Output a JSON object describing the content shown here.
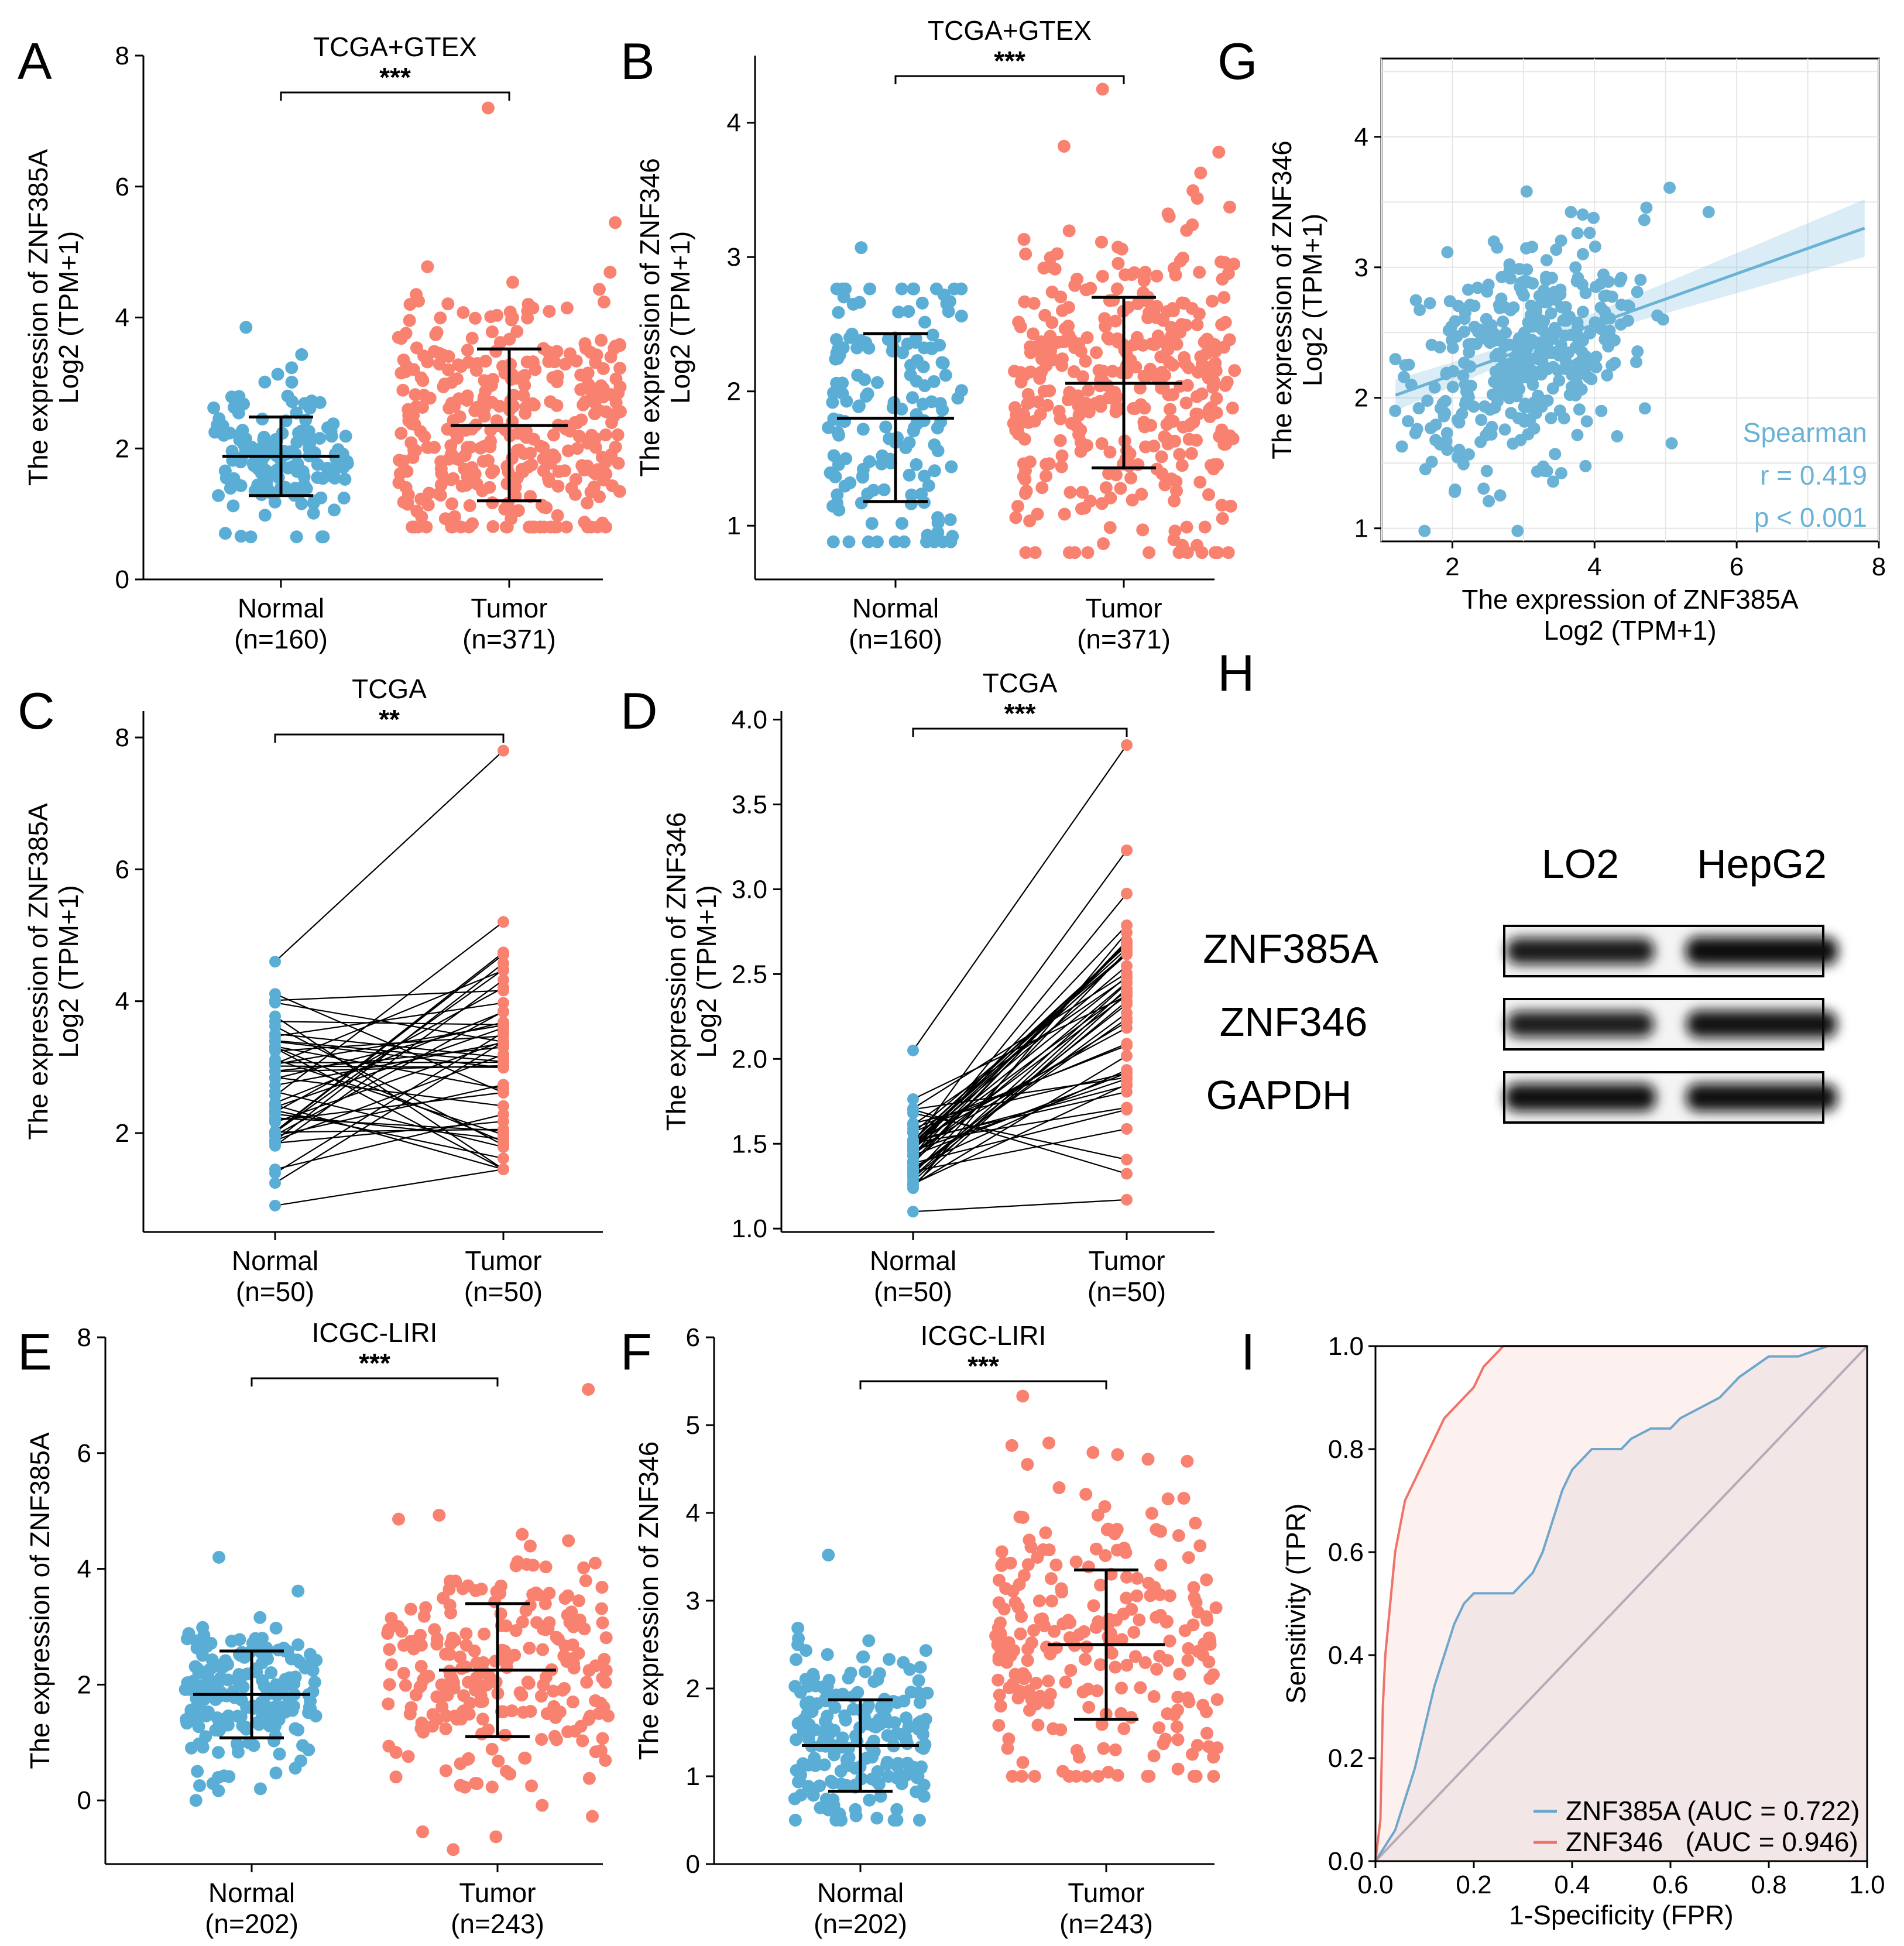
{
  "colors": {
    "normal": "#5aaed6",
    "tumor": "#f98170",
    "spearman": "#6ab3d6",
    "roc_a": "#6fa6cc",
    "roc_b": "#f07369",
    "diag": "#bba8b8"
  },
  "chart_data": [
    {
      "id": "A",
      "type": "scatter",
      "label": "A",
      "title": "TCGA+GTEX",
      "significance": "***",
      "ylabel_lines": [
        "The expression of ZNF385A",
        "Log2 (TPM+1)"
      ],
      "ylim": [
        0,
        8
      ],
      "yticks": [
        "0",
        "2",
        "4",
        "6",
        "8"
      ],
      "categories": [
        {
          "name": "Normal",
          "n": "(n=160)"
        },
        {
          "name": "Tumor",
          "n": "(n=371)"
        }
      ],
      "series": [
        {
          "name": "Normal",
          "mean": 1.88,
          "sd_low": 1.28,
          "sd_high": 2.48,
          "min": 0.65,
          "max": 3.85,
          "count": 160
        },
        {
          "name": "Tumor",
          "mean": 2.35,
          "sd_low": 1.2,
          "sd_high": 3.52,
          "min": 0.8,
          "max": 7.2,
          "count": 371
        }
      ]
    },
    {
      "id": "B",
      "type": "scatter",
      "label": "B",
      "title": "TCGA+GTEX",
      "significance": "***",
      "ylabel_lines": [
        "The expression of ZNF346",
        "Log2 (TPM+1)"
      ],
      "ylim": [
        0.6,
        4.5
      ],
      "yticks": [
        "1",
        "2",
        "3",
        "4"
      ],
      "categories": [
        {
          "name": "Normal",
          "n": "(n=160)"
        },
        {
          "name": "Tumor",
          "n": "(n=371)"
        }
      ],
      "series": [
        {
          "name": "Normal",
          "mean": 1.8,
          "sd_low": 1.18,
          "sd_high": 2.43,
          "min": 0.88,
          "max": 3.07,
          "count": 160
        },
        {
          "name": "Tumor",
          "mean": 2.06,
          "sd_low": 1.43,
          "sd_high": 2.7,
          "min": 0.8,
          "max": 4.25,
          "count": 371
        }
      ]
    },
    {
      "id": "C",
      "type": "line",
      "label": "C",
      "title": "TCGA",
      "significance": "**",
      "ylabel_lines": [
        "The expression of ZNF385A",
        "Log2 (TPM+1)"
      ],
      "ylim": [
        0.5,
        8.4
      ],
      "yticks": [
        "2",
        "4",
        "6",
        "8"
      ],
      "categories": [
        {
          "name": "Normal",
          "n": "(n=50)"
        },
        {
          "name": "Tumor",
          "n": "(n=50)"
        }
      ],
      "series": [
        {
          "name": "Normal",
          "min": 0.9,
          "max": 4.6,
          "mean": 2.7,
          "count": 50
        },
        {
          "name": "Tumor",
          "min": 1.45,
          "max": 7.8,
          "mean": 3.0,
          "count": 50
        }
      ]
    },
    {
      "id": "D",
      "type": "line",
      "label": "D",
      "title": "TCGA",
      "significance": "***",
      "ylabel_lines": [
        "The expression of ZNF346",
        "Log2 (TPM+1)"
      ],
      "ylim": [
        0.98,
        4.05
      ],
      "yticks": [
        "1.0",
        "1.5",
        "2.0",
        "2.5",
        "3.0",
        "3.5",
        "4.0"
      ],
      "categories": [
        {
          "name": "Normal",
          "n": "(n=50)"
        },
        {
          "name": "Tumor",
          "n": "(n=50)"
        }
      ],
      "series": [
        {
          "name": "Normal",
          "min": 1.1,
          "max": 2.05,
          "mean": 1.5,
          "count": 50
        },
        {
          "name": "Tumor",
          "min": 1.17,
          "max": 3.85,
          "mean": 2.3,
          "count": 50
        }
      ]
    },
    {
      "id": "E",
      "type": "scatter",
      "label": "E",
      "title": "ICGC-LIRI",
      "significance": "***",
      "ylabel_lines": [
        "The expression of ZNF385A"
      ],
      "ylim": [
        -1.1,
        8
      ],
      "yticks": [
        "0",
        "2",
        "4",
        "6",
        "8"
      ],
      "categories": [
        {
          "name": "Normal",
          "n": "(n=202)"
        },
        {
          "name": "Tumor",
          "n": "(n=243)"
        }
      ],
      "series": [
        {
          "name": "Normal",
          "mean": 1.83,
          "sd_low": 1.08,
          "sd_high": 2.58,
          "min": 0.0,
          "max": 4.2,
          "count": 202
        },
        {
          "name": "Tumor",
          "mean": 2.25,
          "sd_low": 1.1,
          "sd_high": 3.4,
          "min": -0.85,
          "max": 7.1,
          "count": 243
        }
      ]
    },
    {
      "id": "F",
      "type": "scatter",
      "label": "F",
      "title": "ICGC-LIRI",
      "significance": "***",
      "ylabel_lines": [
        "The expression of ZNF346"
      ],
      "ylim": [
        0,
        6
      ],
      "yticks": [
        "0",
        "1",
        "2",
        "3",
        "4",
        "5",
        "6"
      ],
      "categories": [
        {
          "name": "Normal",
          "n": "(n=202)"
        },
        {
          "name": "Tumor",
          "n": "(n=243)"
        }
      ],
      "series": [
        {
          "name": "Normal",
          "mean": 1.35,
          "sd_low": 0.83,
          "sd_high": 1.87,
          "min": 0.5,
          "max": 3.52,
          "count": 202
        },
        {
          "name": "Tumor",
          "mean": 2.5,
          "sd_low": 1.65,
          "sd_high": 3.35,
          "min": 1.0,
          "max": 5.33,
          "count": 243
        }
      ]
    },
    {
      "id": "G",
      "type": "scatter",
      "label": "G",
      "xlabel_lines": [
        "The expression of ZNF385A",
        "Log2 (TPM+1)"
      ],
      "ylabel_lines": [
        "The expression of ZNF346",
        "Log2 (TPM+1)"
      ],
      "xlim": [
        1,
        8
      ],
      "ylim": [
        0.9,
        4.6
      ],
      "xticks": [
        "2",
        "4",
        "6",
        "8"
      ],
      "yticks": [
        "1",
        "2",
        "3",
        "4"
      ],
      "fit": {
        "x0": 1.2,
        "y0": 2.02,
        "x1": 7.8,
        "y1": 3.3
      },
      "annotation": {
        "method": "Spearman",
        "r": "r = 0.419",
        "p": "p < 0.001"
      },
      "count": 371
    },
    {
      "id": "I",
      "type": "line",
      "label": "I",
      "xlabel": "1-Specificity (FPR)",
      "ylabel": "Sensitivity (TPR)",
      "xlim": [
        0,
        1
      ],
      "ylim": [
        0,
        1
      ],
      "xticks": [
        "0.0",
        "0.2",
        "0.4",
        "0.6",
        "0.8",
        "1.0"
      ],
      "yticks": [
        "0.0",
        "0.2",
        "0.4",
        "0.6",
        "0.8",
        "1.0"
      ],
      "series": [
        {
          "name": "ZNF385A",
          "legend_label": "ZNF385A (AUC = 0.722)",
          "points": [
            [
              0,
              0
            ],
            [
              0.02,
              0.03
            ],
            [
              0.04,
              0.06
            ],
            [
              0.06,
              0.12
            ],
            [
              0.08,
              0.18
            ],
            [
              0.1,
              0.26
            ],
            [
              0.12,
              0.34
            ],
            [
              0.14,
              0.4
            ],
            [
              0.16,
              0.46
            ],
            [
              0.18,
              0.5
            ],
            [
              0.2,
              0.52
            ],
            [
              0.28,
              0.52
            ],
            [
              0.32,
              0.56
            ],
            [
              0.34,
              0.6
            ],
            [
              0.36,
              0.66
            ],
            [
              0.38,
              0.72
            ],
            [
              0.4,
              0.76
            ],
            [
              0.42,
              0.78
            ],
            [
              0.44,
              0.8
            ],
            [
              0.5,
              0.8
            ],
            [
              0.52,
              0.82
            ],
            [
              0.56,
              0.84
            ],
            [
              0.6,
              0.84
            ],
            [
              0.62,
              0.86
            ],
            [
              0.66,
              0.88
            ],
            [
              0.7,
              0.9
            ],
            [
              0.74,
              0.94
            ],
            [
              0.8,
              0.98
            ],
            [
              0.86,
              0.98
            ],
            [
              0.92,
              1.0
            ],
            [
              1,
              1
            ]
          ]
        },
        {
          "name": "ZNF346",
          "legend_label": "ZNF346   (AUC = 0.946)",
          "points": [
            [
              0,
              0
            ],
            [
              0.01,
              0.08
            ],
            [
              0.015,
              0.3
            ],
            [
              0.02,
              0.4
            ],
            [
              0.03,
              0.5
            ],
            [
              0.04,
              0.6
            ],
            [
              0.05,
              0.65
            ],
            [
              0.06,
              0.7
            ],
            [
              0.08,
              0.74
            ],
            [
              0.1,
              0.78
            ],
            [
              0.12,
              0.82
            ],
            [
              0.14,
              0.86
            ],
            [
              0.16,
              0.88
            ],
            [
              0.18,
              0.9
            ],
            [
              0.2,
              0.92
            ],
            [
              0.22,
              0.96
            ],
            [
              0.24,
              0.98
            ],
            [
              0.26,
              1.0
            ],
            [
              1,
              1
            ]
          ]
        }
      ]
    }
  ],
  "western_blot": {
    "label": "H",
    "columns": [
      "LO2",
      "HepG2"
    ],
    "rows": [
      {
        "name": "ZNF385A",
        "intensity": [
          0.82,
          1.0
        ]
      },
      {
        "name": "ZNF346",
        "intensity": [
          0.78,
          0.92
        ]
      },
      {
        "name": "GAPDH",
        "intensity": [
          0.95,
          0.95
        ]
      }
    ]
  }
}
